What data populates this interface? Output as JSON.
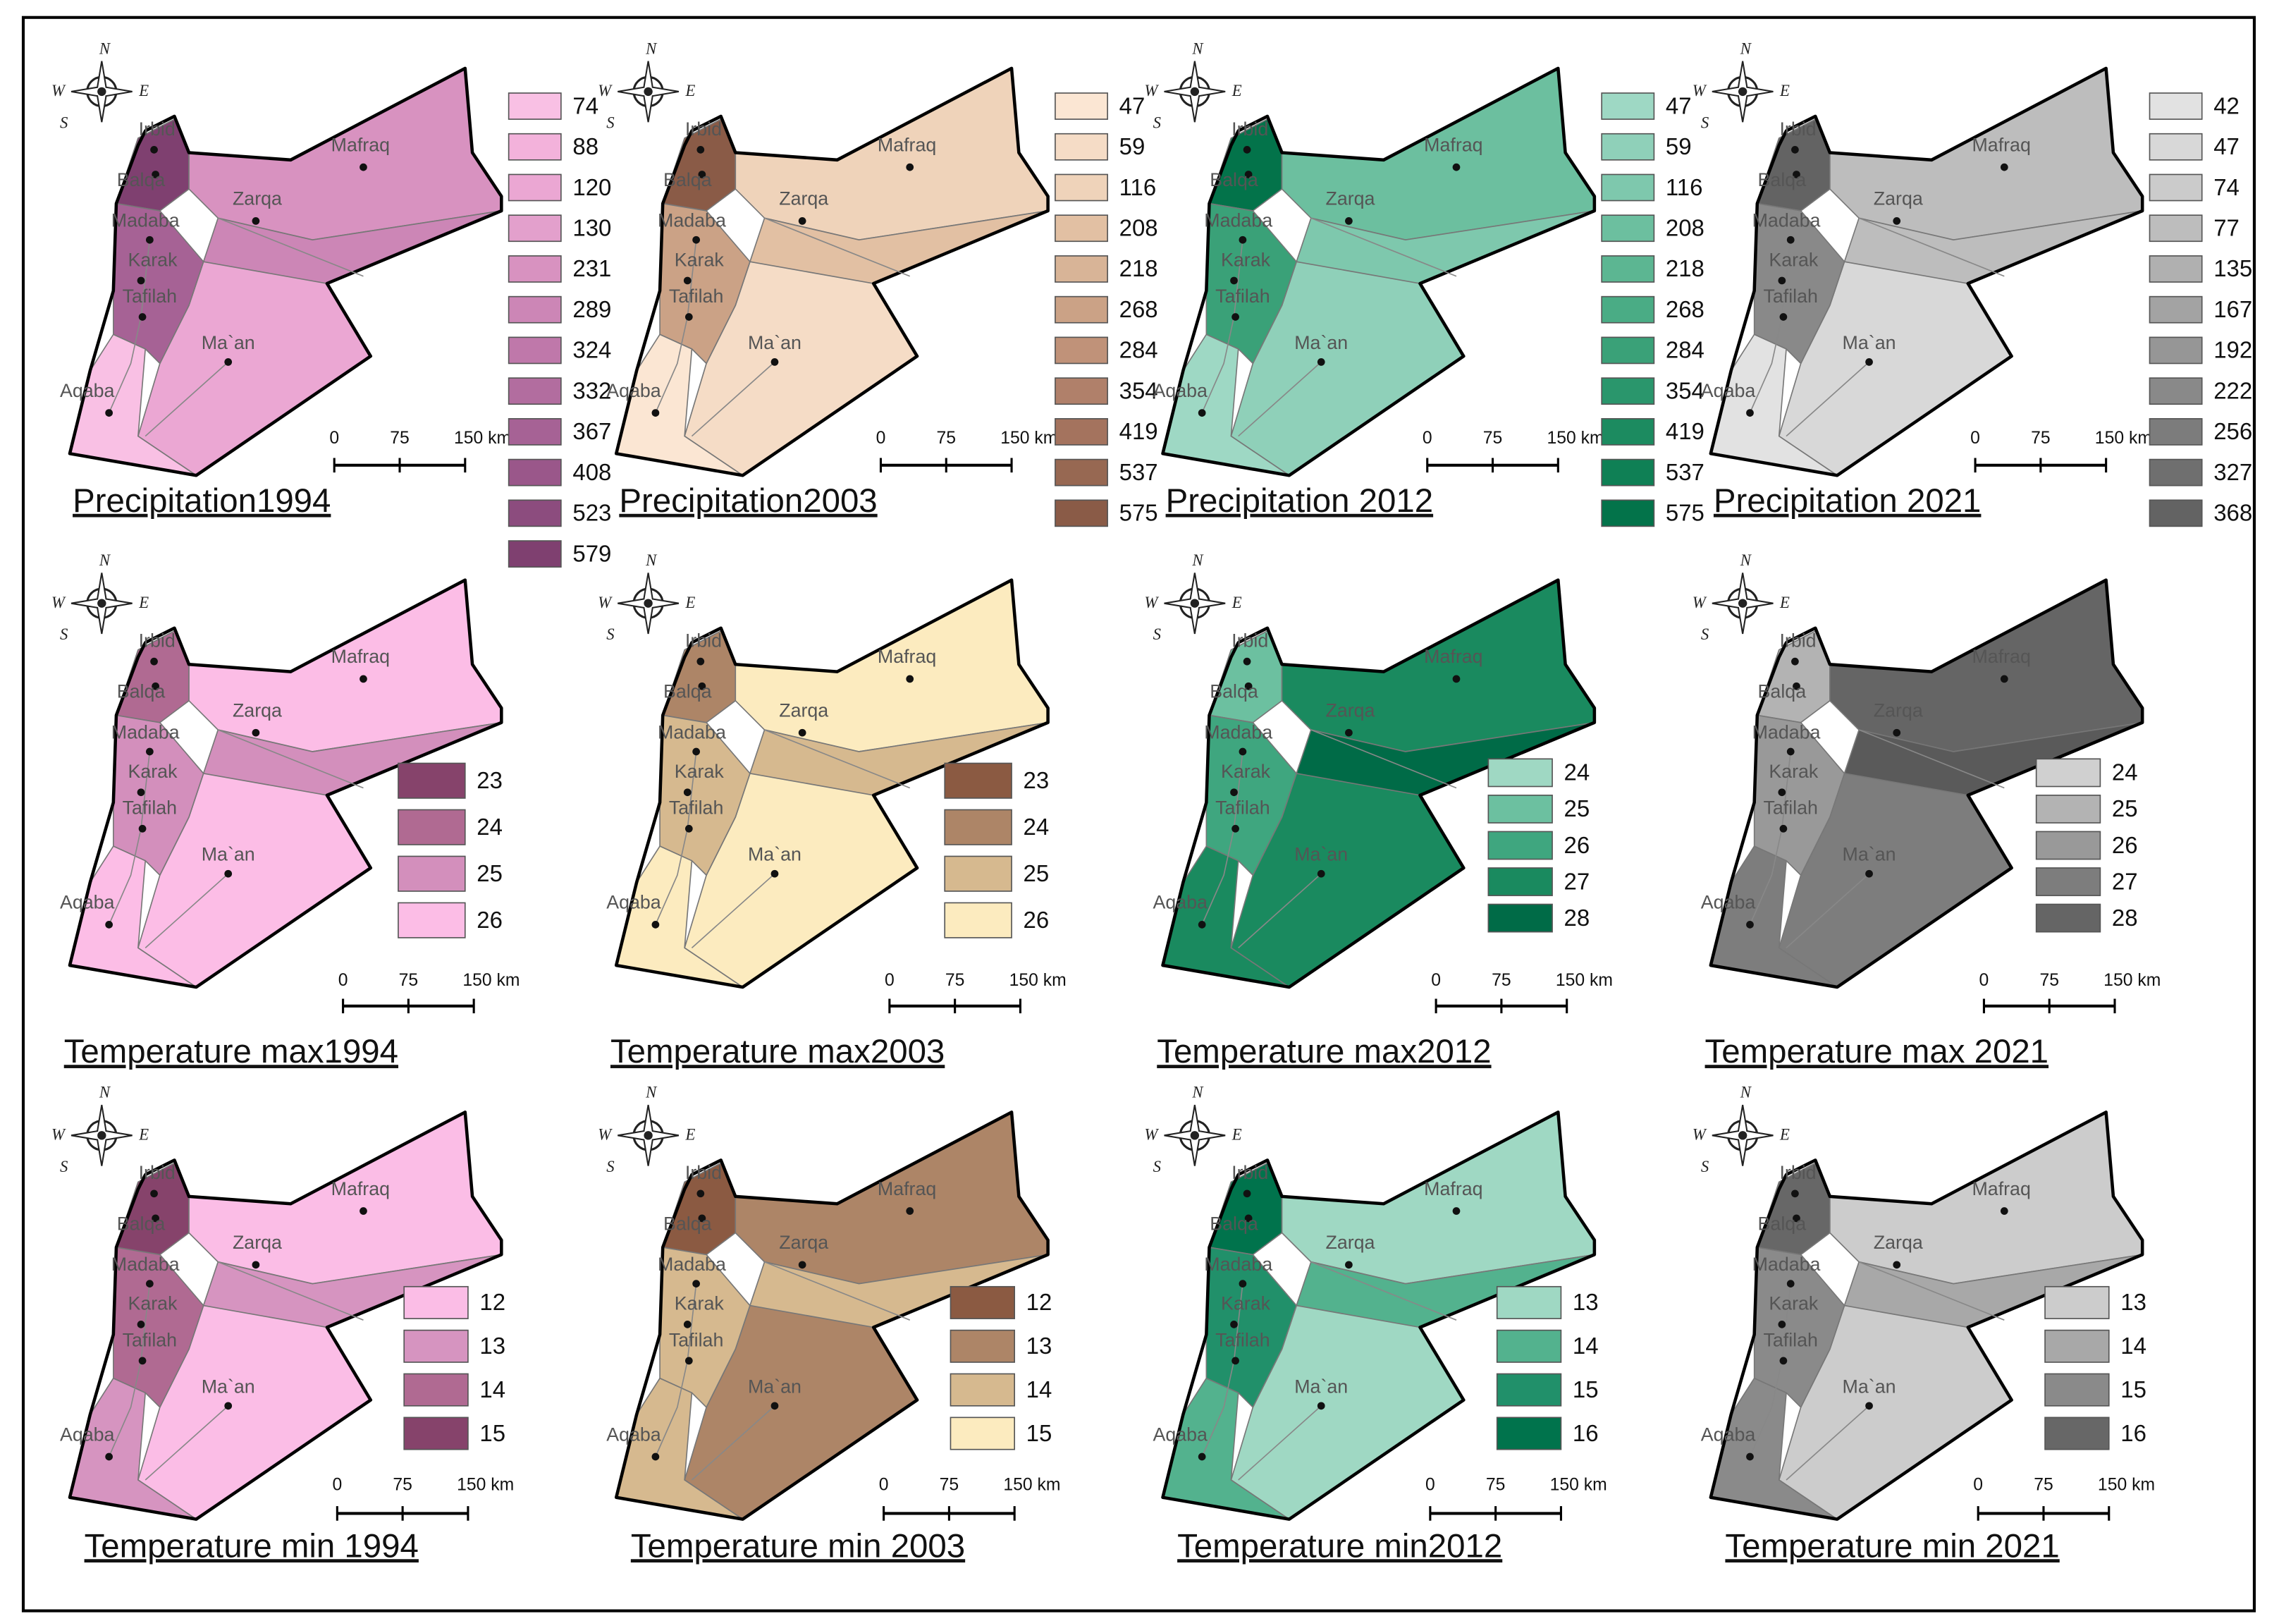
{
  "cities": [
    "Irbid",
    "Mafraq",
    "Balqa",
    "Zarqa",
    "Madaba",
    "Karak",
    "Tafilah",
    "Ma`an",
    "Aqaba"
  ],
  "scale_bar": [
    "0",
    "75",
    "150 km"
  ],
  "compass": [
    "N",
    "W",
    "E",
    "S"
  ],
  "panels": [
    {
      "title": "Precipitation1994",
      "legend": [
        74,
        88,
        120,
        130,
        231,
        289,
        324,
        332,
        367,
        408,
        523,
        579
      ],
      "colors": [
        "#f9c0e4",
        "#f3b2db",
        "#eba7d3",
        "#e3a0cc",
        "#d892c0",
        "#cc86b6",
        "#bf78aa",
        "#b26d9f",
        "#a66295",
        "#9a578a",
        "#8c4c7e",
        "#7f4070"
      ],
      "fills": [
        "#7f4070",
        "#d892c0",
        "#cc86b6",
        "#eba7d3",
        "#f9c0e4",
        "#a66295"
      ]
    },
    {
      "title": "Precipitation2003",
      "legend": [
        47,
        59,
        116,
        208,
        218,
        268,
        284,
        354,
        419,
        537,
        575
      ],
      "colors": [
        "#fbe6d3",
        "#f5dcc6",
        "#efd3ba",
        "#e2c0a3",
        "#d8b497",
        "#cba286",
        "#c09279",
        "#b0806a",
        "#a4735e",
        "#976852",
        "#8a5b47"
      ],
      "fills": [
        "#8a5b47",
        "#efd3ba",
        "#e2c0a3",
        "#f5dcc6",
        "#fbe6d3",
        "#cba286"
      ]
    },
    {
      "title": "Precipitation 2012",
      "legend": [
        47,
        59,
        116,
        208,
        218,
        268,
        284,
        354,
        419,
        537,
        575
      ],
      "colors": [
        "#9ed8c4",
        "#8fd0b9",
        "#7ec8ad",
        "#6cbf9f",
        "#5cb692",
        "#4aac85",
        "#3aa178",
        "#2a966c",
        "#1c8b60",
        "#0f8055",
        "#03734a"
      ],
      "fills": [
        "#03734a",
        "#6cbf9f",
        "#7ec8ad",
        "#8fd0b9",
        "#9ed8c4",
        "#3aa178"
      ]
    },
    {
      "title": "Precipitation 2021",
      "legend": [
        42,
        47,
        74,
        77,
        135,
        167,
        192,
        222,
        256,
        327,
        368
      ],
      "colors": [
        "#e2e2e2",
        "#d8d8d8",
        "#cbcbcb",
        "#bdbdbd",
        "#b0b0b0",
        "#a3a3a3",
        "#969696",
        "#898989",
        "#7c7c7c",
        "#6f6f6f",
        "#636363"
      ],
      "fills": [
        "#636363",
        "#bdbdbd",
        "#bdbdbd",
        "#d8d8d8",
        "#e2e2e2",
        "#898989"
      ]
    },
    {
      "title": "Temperature max1994",
      "legend": [
        23,
        24,
        25,
        26
      ],
      "colors": [
        "#86436b",
        "#b06a92",
        "#d38fbc",
        "#fcbde6"
      ],
      "fills": [
        "#b06a92",
        "#fcbde6",
        "#d38fbc",
        "#fcbde6",
        "#fcbde6",
        "#d38fbc"
      ]
    },
    {
      "title": "Temperature max2003",
      "legend": [
        23,
        24,
        25,
        26
      ],
      "colors": [
        "#8b5a42",
        "#ad8567",
        "#d6b98f",
        "#fcebbf"
      ],
      "fills": [
        "#ad8567",
        "#fcebbf",
        "#d6b98f",
        "#fcebbf",
        "#fcebbf",
        "#d6b98f"
      ]
    },
    {
      "title": "Temperature max2012",
      "legend": [
        24,
        25,
        26,
        27,
        28
      ],
      "colors": [
        "#9fd8c3",
        "#6cc0a0",
        "#3fa67f",
        "#1a8a5f",
        "#006b47"
      ],
      "fills": [
        "#6cc0a0",
        "#1a8a5f",
        "#006b47",
        "#1a8a5f",
        "#1a8a5f",
        "#3fa67f"
      ]
    },
    {
      "title": "Temperature max 2021",
      "legend": [
        24,
        25,
        26,
        27,
        28
      ],
      "colors": [
        "#d0d0d0",
        "#b3b3b3",
        "#999999",
        "#7d7d7d",
        "#656565"
      ],
      "fills": [
        "#b3b3b3",
        "#656565",
        "#5a5a5a",
        "#7d7d7d",
        "#7d7d7d",
        "#999999"
      ]
    },
    {
      "title": "Temperature min 1994",
      "legend": [
        12,
        13,
        14,
        15
      ],
      "colors": [
        "#fbbde6",
        "#d694c0",
        "#b06a92",
        "#86436b"
      ],
      "fills": [
        "#86436b",
        "#fbbde6",
        "#d694c0",
        "#fbbde6",
        "#d694c0",
        "#b06a92"
      ]
    },
    {
      "title": "Temperature min 2003",
      "legend": [
        12,
        13,
        14,
        15
      ],
      "colors": [
        "#8b5a42",
        "#ad8567",
        "#d6b98f",
        "#fcebbf"
      ],
      "fills": [
        "#8b5a42",
        "#ad8567",
        "#d6b98f",
        "#ad8567",
        "#d6b98f",
        "#d6b98f"
      ]
    },
    {
      "title": "Temperature min2012",
      "legend": [
        13,
        14,
        15,
        16
      ],
      "colors": [
        "#9fd8c3",
        "#53b28e",
        "#21906a",
        "#00734c"
      ],
      "fills": [
        "#00734c",
        "#9fd8c3",
        "#53b28e",
        "#9fd8c3",
        "#53b28e",
        "#21906a"
      ]
    },
    {
      "title": "Temperature min 2021",
      "legend": [
        13,
        14,
        15,
        16
      ],
      "colors": [
        "#cccccc",
        "#a8a8a8",
        "#8a8a8a",
        "#676767"
      ],
      "fills": [
        "#676767",
        "#cccccc",
        "#a8a8a8",
        "#cccccc",
        "#8a8a8a",
        "#8a8a8a"
      ]
    }
  ]
}
